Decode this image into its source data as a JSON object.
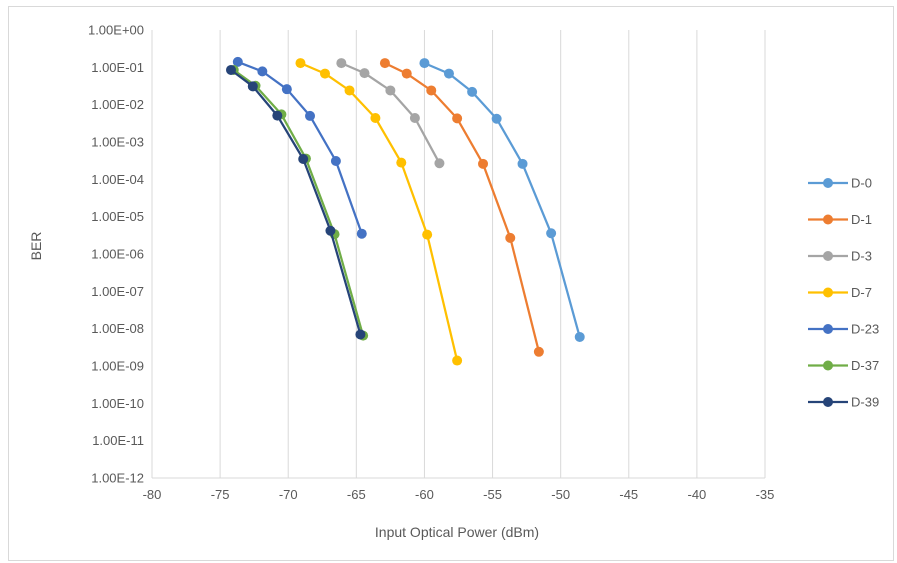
{
  "chart_data": {
    "type": "line",
    "xlabel": "Input Optical Power (dBm)",
    "ylabel": "BER",
    "xlim": [
      -80,
      -35
    ],
    "xticks": [
      -80,
      -75,
      -70,
      -65,
      -60,
      -55,
      -50,
      -45,
      -40,
      -35
    ],
    "xtick_labels": [
      "-80",
      "-75",
      "-70",
      "-65",
      "-60",
      "-55",
      "-50",
      "-45",
      "-40",
      "-35"
    ],
    "y_scale": "log",
    "ylim": [
      1e-12,
      1
    ],
    "yticks": [
      1,
      0.1,
      0.01,
      0.001,
      0.0001,
      1e-05,
      1e-06,
      1e-07,
      1e-08,
      1e-09,
      1e-10,
      1e-11,
      1e-12
    ],
    "ytick_labels": [
      "1.00E+00",
      "1.00E-01",
      "1.00E-02",
      "1.00E-03",
      "1.00E-04",
      "1.00E-05",
      "1.00E-06",
      "1.00E-07",
      "1.00E-08",
      "1.00E-09",
      "1.00E-10",
      "1.00E-11",
      "1.00E-12"
    ],
    "grid": "vertical",
    "legend_position": "right",
    "series": [
      {
        "name": "D-0",
        "color": "#5b9bd5",
        "x": [
          -60,
          -58.2,
          -56.5,
          -54.7,
          -52.8,
          -50.7,
          -48.6
        ],
        "y": [
          0.13,
          0.068,
          0.022,
          0.0042,
          0.00026,
          3.6e-06,
          6e-09
        ]
      },
      {
        "name": "D-1",
        "color": "#ed7d31",
        "x": [
          -62.9,
          -61.3,
          -59.5,
          -57.6,
          -55.7,
          -53.7,
          -51.6
        ],
        "y": [
          0.13,
          0.068,
          0.024,
          0.0043,
          0.00026,
          2.7e-06,
          2.4e-09
        ]
      },
      {
        "name": "D-3",
        "color": "#a5a5a5",
        "x": [
          -66.1,
          -64.4,
          -62.5,
          -60.7,
          -58.9
        ],
        "y": [
          0.13,
          0.07,
          0.024,
          0.0044,
          0.00027
        ]
      },
      {
        "name": "D-7",
        "color": "#ffc000",
        "x": [
          -69.1,
          -67.3,
          -65.5,
          -63.6,
          -61.7,
          -59.8,
          -57.6
        ],
        "y": [
          0.13,
          0.068,
          0.024,
          0.0044,
          0.00028,
          3.3e-06,
          1.4e-09
        ]
      },
      {
        "name": "D-23",
        "color": "#4472c4",
        "x": [
          -73.7,
          -71.9,
          -70.1,
          -68.4,
          -66.5,
          -64.6
        ],
        "y": [
          0.14,
          0.078,
          0.026,
          0.005,
          0.00031,
          3.5e-06
        ]
      },
      {
        "name": "D-37",
        "color": "#70ad47",
        "x": [
          -74,
          -72.4,
          -70.5,
          -68.7,
          -66.6,
          -64.5
        ],
        "y": [
          0.085,
          0.032,
          0.0055,
          0.00036,
          3.4e-06,
          6.5e-09
        ]
      },
      {
        "name": "D-39",
        "color": "#264478",
        "x": [
          -74.2,
          -72.6,
          -70.8,
          -68.9,
          -66.9,
          -64.7
        ],
        "y": [
          0.085,
          0.031,
          0.0051,
          0.00035,
          4.2e-06,
          7e-09
        ]
      }
    ]
  }
}
